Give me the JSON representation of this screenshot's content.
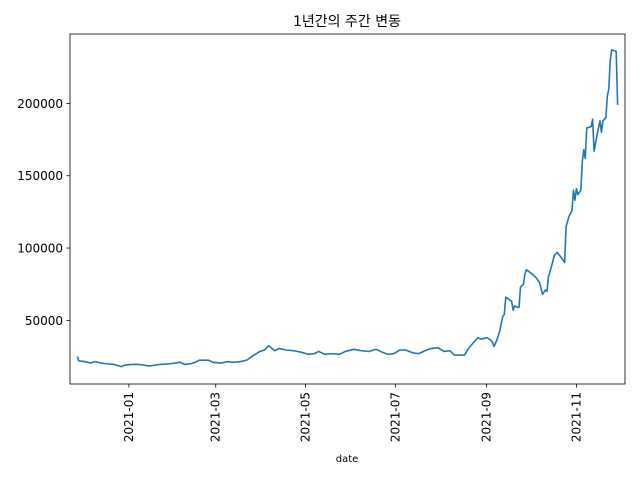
{
  "chart_data": {
    "type": "line",
    "title": "1년간의 주간 변동",
    "xlabel": "date",
    "ylabel": "",
    "x_type": "date",
    "xlim": [
      "2020-11-22",
      "2021-12-04"
    ],
    "ylim": [
      6000,
      248000
    ],
    "x_ticks": [
      "2021-01",
      "2021-03",
      "2021-05",
      "2021-07",
      "2021-09",
      "2021-11"
    ],
    "y_ticks": [
      50000,
      100000,
      150000,
      200000
    ],
    "grid": false,
    "color": "#1f77b4",
    "series": [
      {
        "points": [
          [
            "2020-11-27",
            25000
          ],
          [
            "2020-11-28",
            22000
          ],
          [
            "2020-12-02",
            21500
          ],
          [
            "2020-12-06",
            20500
          ],
          [
            "2020-12-09",
            21500
          ],
          [
            "2020-12-13",
            20500
          ],
          [
            "2020-12-17",
            20000
          ],
          [
            "2020-12-22",
            19500
          ],
          [
            "2020-12-27",
            18000
          ],
          [
            "2020-12-29",
            19000
          ],
          [
            "2021-01-03",
            19500
          ],
          [
            "2021-01-08",
            19500
          ],
          [
            "2021-01-15",
            18500
          ],
          [
            "2021-01-22",
            19500
          ],
          [
            "2021-01-29",
            20000
          ],
          [
            "2021-02-05",
            21000
          ],
          [
            "2021-02-08",
            19500
          ],
          [
            "2021-02-12",
            20000
          ],
          [
            "2021-02-15",
            21000
          ],
          [
            "2021-02-18",
            22500
          ],
          [
            "2021-02-24",
            22500
          ],
          [
            "2021-02-27",
            21000
          ],
          [
            "2021-03-05",
            20500
          ],
          [
            "2021-03-09",
            21500
          ],
          [
            "2021-03-13",
            21000
          ],
          [
            "2021-03-18",
            21500
          ],
          [
            "2021-03-22",
            22500
          ],
          [
            "2021-03-27",
            26000
          ],
          [
            "2021-03-31",
            28500
          ],
          [
            "2021-04-03",
            29500
          ],
          [
            "2021-04-06",
            32500
          ],
          [
            "2021-04-10",
            29000
          ],
          [
            "2021-04-13",
            30500
          ],
          [
            "2021-04-18",
            29500
          ],
          [
            "2021-04-23",
            29000
          ],
          [
            "2021-04-28",
            28000
          ],
          [
            "2021-05-03",
            26500
          ],
          [
            "2021-05-07",
            27000
          ],
          [
            "2021-05-10",
            28500
          ],
          [
            "2021-05-14",
            26500
          ],
          [
            "2021-05-19",
            27000
          ],
          [
            "2021-05-24",
            26500
          ],
          [
            "2021-05-28",
            28500
          ],
          [
            "2021-06-03",
            30000
          ],
          [
            "2021-06-08",
            29000
          ],
          [
            "2021-06-13",
            28500
          ],
          [
            "2021-06-18",
            30000
          ],
          [
            "2021-06-22",
            28000
          ],
          [
            "2021-06-26",
            26500
          ],
          [
            "2021-06-30",
            27000
          ],
          [
            "2021-07-04",
            29500
          ],
          [
            "2021-07-08",
            29500
          ],
          [
            "2021-07-13",
            27500
          ],
          [
            "2021-07-17",
            27000
          ],
          [
            "2021-07-21",
            29000
          ],
          [
            "2021-07-25",
            30500
          ],
          [
            "2021-07-30",
            31000
          ],
          [
            "2021-08-03",
            28500
          ],
          [
            "2021-08-07",
            29000
          ],
          [
            "2021-08-10",
            26000
          ],
          [
            "2021-08-14",
            26000
          ],
          [
            "2021-08-17",
            26000
          ],
          [
            "2021-08-20",
            31000
          ],
          [
            "2021-08-23",
            34500
          ],
          [
            "2021-08-26",
            38000
          ],
          [
            "2021-08-28",
            37000
          ],
          [
            "2021-09-01",
            38000
          ],
          [
            "2021-09-03",
            37000
          ],
          [
            "2021-09-05",
            35000
          ],
          [
            "2021-09-06",
            32000
          ],
          [
            "2021-09-08",
            36500
          ],
          [
            "2021-09-10",
            43000
          ],
          [
            "2021-09-12",
            53000
          ],
          [
            "2021-09-13",
            54000
          ],
          [
            "2021-09-14",
            66000
          ],
          [
            "2021-09-17",
            64000
          ],
          [
            "2021-09-18",
            63000
          ],
          [
            "2021-09-19",
            57000
          ],
          [
            "2021-09-20",
            60000
          ],
          [
            "2021-09-22",
            59000
          ],
          [
            "2021-09-23",
            59000
          ],
          [
            "2021-09-24",
            73000
          ],
          [
            "2021-09-26",
            75000
          ],
          [
            "2021-09-27",
            82000
          ],
          [
            "2021-09-28",
            85000
          ],
          [
            "2021-10-02",
            82000
          ],
          [
            "2021-10-05",
            79000
          ],
          [
            "2021-10-07",
            76000
          ],
          [
            "2021-10-09",
            68000
          ],
          [
            "2021-10-11",
            71000
          ],
          [
            "2021-10-12",
            70000
          ],
          [
            "2021-10-13",
            80000
          ],
          [
            "2021-10-15",
            87000
          ],
          [
            "2021-10-17",
            95000
          ],
          [
            "2021-10-19",
            97000
          ],
          [
            "2021-10-22",
            93000
          ],
          [
            "2021-10-24",
            90000
          ],
          [
            "2021-10-25",
            115000
          ],
          [
            "2021-10-27",
            122000
          ],
          [
            "2021-10-29",
            126000
          ],
          [
            "2021-10-30",
            140000
          ],
          [
            "2021-10-31",
            133000
          ],
          [
            "2021-11-01",
            141000
          ],
          [
            "2021-11-02",
            137000
          ],
          [
            "2021-11-04",
            140000
          ],
          [
            "2021-11-05",
            160000
          ],
          [
            "2021-11-06",
            168000
          ],
          [
            "2021-11-07",
            162000
          ],
          [
            "2021-11-08",
            183000
          ],
          [
            "2021-11-11",
            184000
          ],
          [
            "2021-11-12",
            189000
          ],
          [
            "2021-11-13",
            167000
          ],
          [
            "2021-11-15",
            178000
          ],
          [
            "2021-11-17",
            188000
          ],
          [
            "2021-11-18",
            180000
          ],
          [
            "2021-11-19",
            188000
          ],
          [
            "2021-11-21",
            190000
          ],
          [
            "2021-11-22",
            205000
          ],
          [
            "2021-11-23",
            210000
          ],
          [
            "2021-11-24",
            230000
          ],
          [
            "2021-11-25",
            237000
          ],
          [
            "2021-11-28",
            236000
          ],
          [
            "2021-11-29",
            199000
          ]
        ]
      }
    ]
  }
}
